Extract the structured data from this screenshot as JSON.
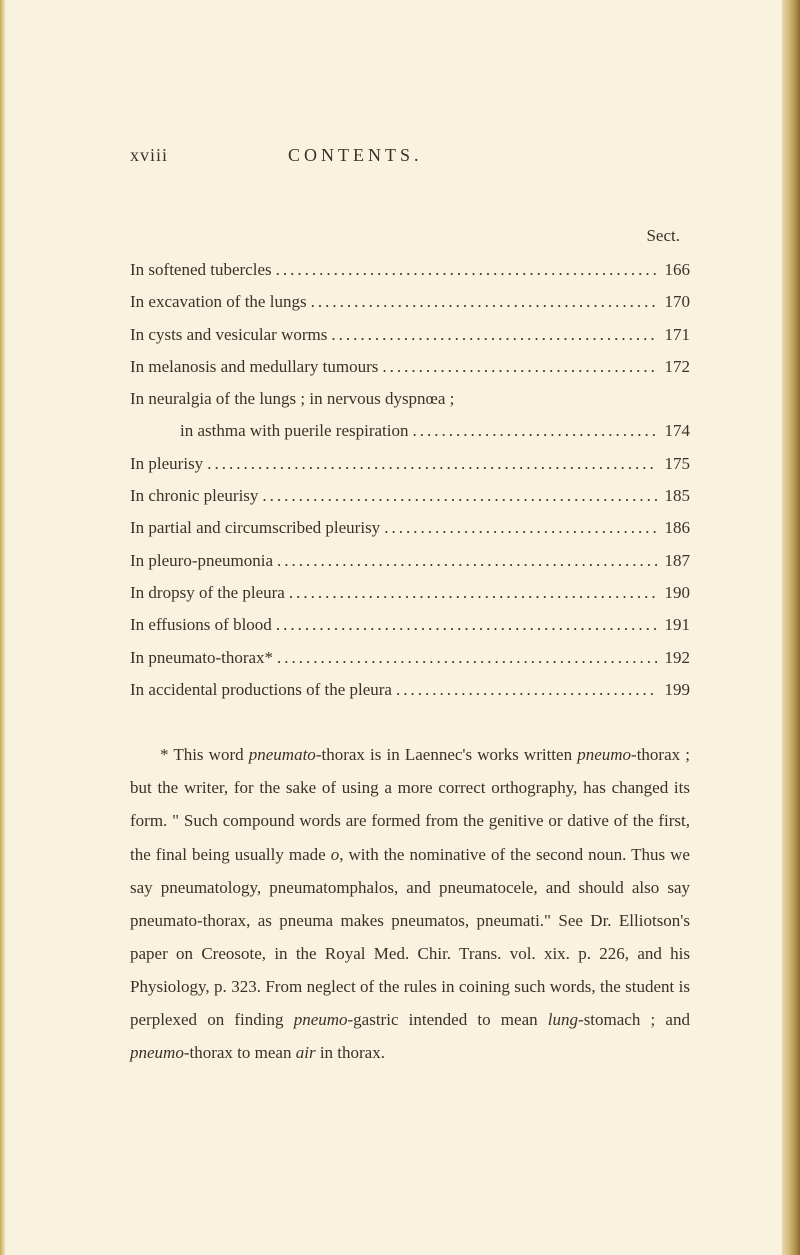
{
  "page": {
    "number": "xviii",
    "headerTitle": "CONTENTS.",
    "sectLabel": "Sect."
  },
  "toc": [
    {
      "text": "In softened tubercles",
      "page": "166",
      "indent": false
    },
    {
      "text": "In excavation of the lungs",
      "page": "170",
      "indent": false
    },
    {
      "text": "In cysts and vesicular worms",
      "page": "171",
      "indent": false
    },
    {
      "text": "In melanosis and medullary tumours",
      "page": "172",
      "indent": false
    },
    {
      "text": "In neuralgia of the lungs ; in nervous dyspnœa ;",
      "page": "",
      "indent": false,
      "noDots": true
    },
    {
      "text": "in asthma with puerile respiration",
      "page": "174",
      "indent": true
    },
    {
      "text": "In pleurisy",
      "page": "175",
      "indent": false
    },
    {
      "text": "In chronic pleurisy",
      "page": "185",
      "indent": false
    },
    {
      "text": "In partial and circumscribed pleurisy",
      "page": "186",
      "indent": false
    },
    {
      "text": "In pleuro-pneumonia",
      "page": "187",
      "indent": false
    },
    {
      "text": "In dropsy of the pleura",
      "page": "190",
      "indent": false
    },
    {
      "text": "In effusions of blood",
      "page": "191",
      "indent": false
    },
    {
      "text": "In pneumato-thorax*",
      "page": "192",
      "indent": false
    },
    {
      "text": "In accidental productions of the pleura",
      "page": "199",
      "indent": false
    }
  ],
  "footnote": {
    "parts": [
      {
        "text": "* This word ",
        "italic": false
      },
      {
        "text": "pneumato",
        "italic": true
      },
      {
        "text": "-thorax is in Laennec's works written ",
        "italic": false
      },
      {
        "text": "pneumo",
        "italic": true
      },
      {
        "text": "-thorax ; but the writer, for the sake of using a more correct orthography, has changed its form. \" Such compound words are formed from the genitive or dative of the first, the final being usually made ",
        "italic": false
      },
      {
        "text": "o",
        "italic": true
      },
      {
        "text": ", with the nominative of the second noun. Thus we say pneumatology, pneumatomphalos, and pneumatocele, and should also say pneumato-thorax, as pneuma makes pneumatos, pneumati.\" See Dr. Elliotson's paper on Creosote, in the Royal Med. Chir. Trans. vol. xix. p. 226, and his Physiology, p. 323. From neglect of the rules in coining such words, the student is perplexed on finding ",
        "italic": false
      },
      {
        "text": "pneumo",
        "italic": true
      },
      {
        "text": "-gastric intended to mean ",
        "italic": false
      },
      {
        "text": "lung",
        "italic": true
      },
      {
        "text": "-stomach ; and ",
        "italic": false
      },
      {
        "text": "pneumo",
        "italic": true
      },
      {
        "text": "-thorax to mean ",
        "italic": false
      },
      {
        "text": "air",
        "italic": true
      },
      {
        "text": " in thorax.",
        "italic": false
      }
    ]
  },
  "dotsFill": "........................................................................"
}
